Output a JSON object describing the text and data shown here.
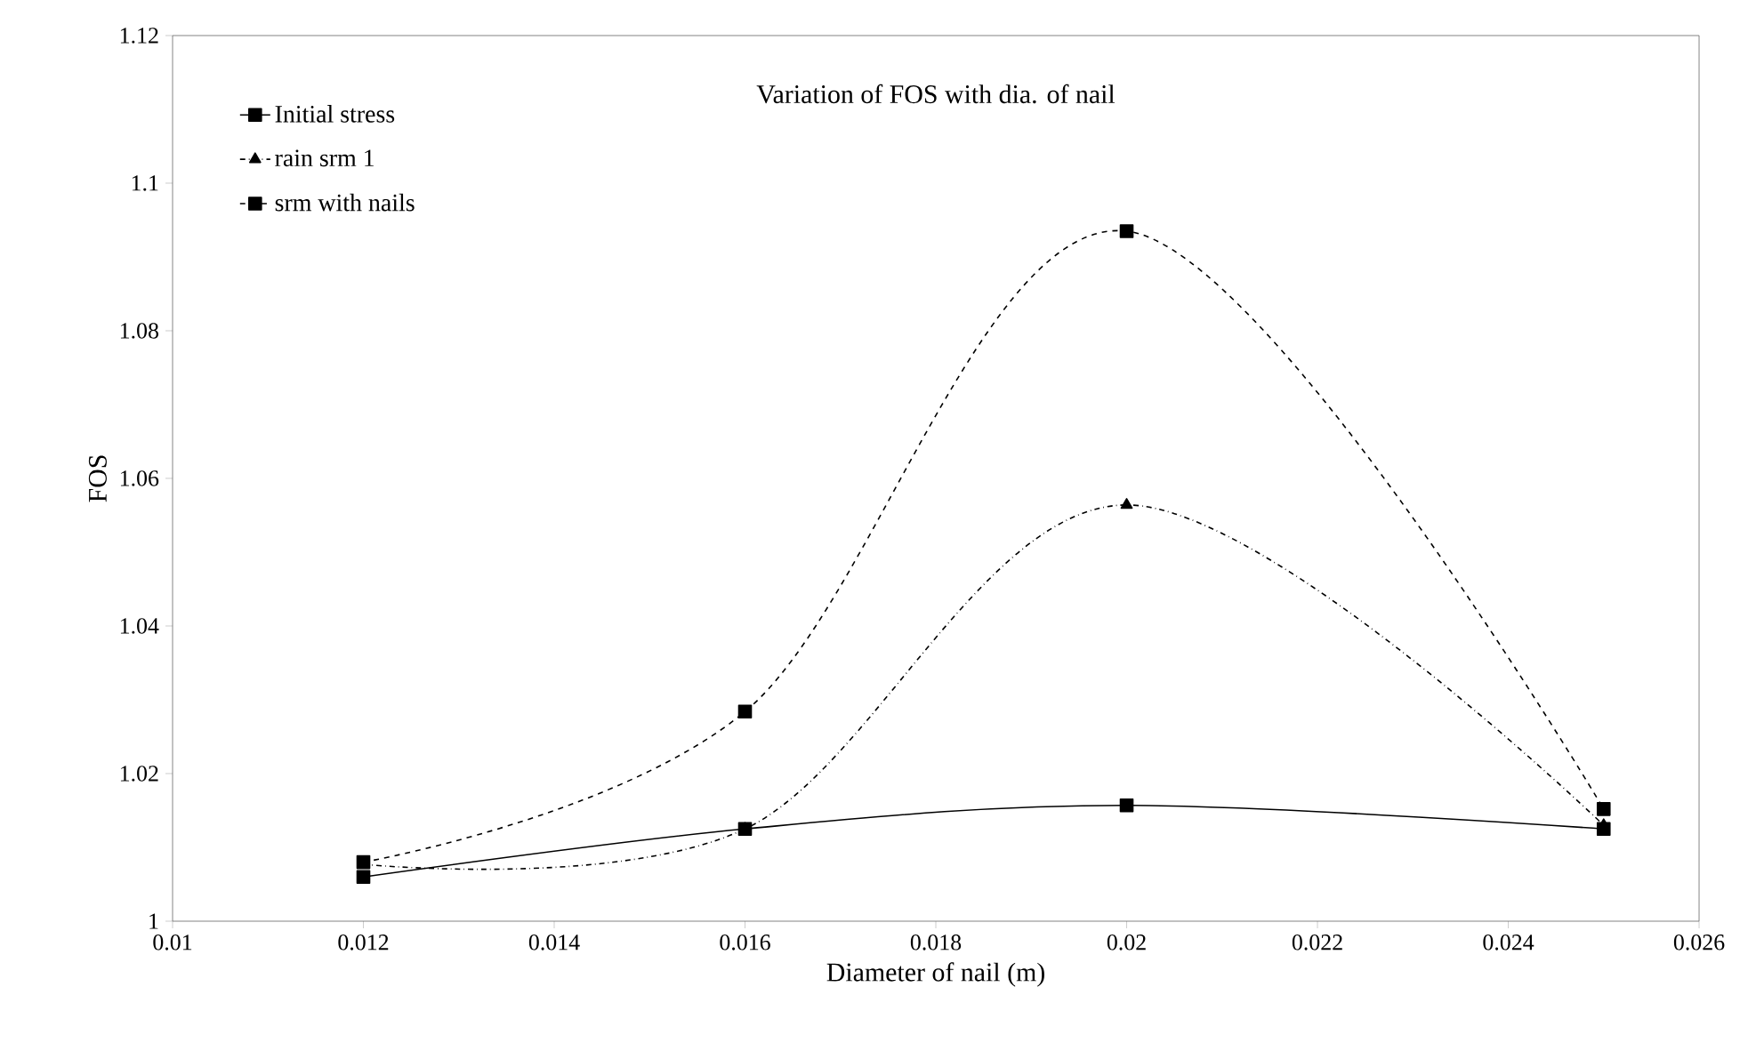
{
  "chart_data": {
    "type": "line",
    "title": "Variation of FOS with dia. of nail",
    "xlabel": "Diameter of nail (m)",
    "ylabel": "FOS",
    "x": [
      0.012,
      0.016,
      0.02,
      0.025
    ],
    "series": [
      {
        "name": "Initial stress",
        "color": "#000000",
        "values": [
          1.006,
          1.0125,
          1.0157,
          1.0125
        ],
        "marker": "square",
        "line_style": "solid"
      },
      {
        "name": "rain srm 1",
        "color": "#000000",
        "values": [
          1.0077,
          1.0125,
          1.0564,
          1.013
        ],
        "marker": "triangle",
        "line_style": "dashdot"
      },
      {
        "name": "srm with nails",
        "color": "#000000",
        "values": [
          1.008,
          1.0284,
          1.0935,
          1.0152
        ],
        "marker": "square",
        "line_style": "dashed"
      }
    ],
    "xlim": [
      0.01,
      0.026
    ],
    "xticks": [
      0.01,
      0.012,
      0.014,
      0.016,
      0.018,
      0.02,
      0.022,
      0.024,
      0.026
    ],
    "ylim": [
      1,
      1.12
    ],
    "yticks": [
      1,
      1.02,
      1.04,
      1.06,
      1.08,
      1.1,
      1.12
    ],
    "grid": false,
    "legend": "top left"
  }
}
